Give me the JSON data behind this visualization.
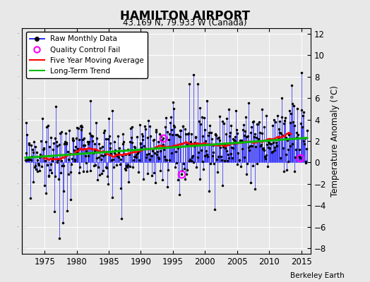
{
  "title": "HAMILTON AIRPORT",
  "subtitle": "43.169 N, 79.933 W (Canada)",
  "ylabel": "Temperature Anomaly (°C)",
  "credit": "Berkeley Earth",
  "xlim": [
    1971.5,
    2016.5
  ],
  "ylim": [
    -8.5,
    12.5
  ],
  "yticks": [
    -8,
    -6,
    -4,
    -2,
    0,
    2,
    4,
    6,
    8,
    10,
    12
  ],
  "xticks": [
    1975,
    1980,
    1985,
    1990,
    1995,
    2000,
    2005,
    2010,
    2015
  ],
  "background_color": "#e8e8e8",
  "grid_color": "#ffffff",
  "raw_color": "#0000ff",
  "moving_avg_color": "#ff0000",
  "trend_color": "#00bb00",
  "qc_color": "#ff00ff",
  "trend_slope": 0.042,
  "trend_at_1990": 1.2,
  "noise_scale": 1.6
}
